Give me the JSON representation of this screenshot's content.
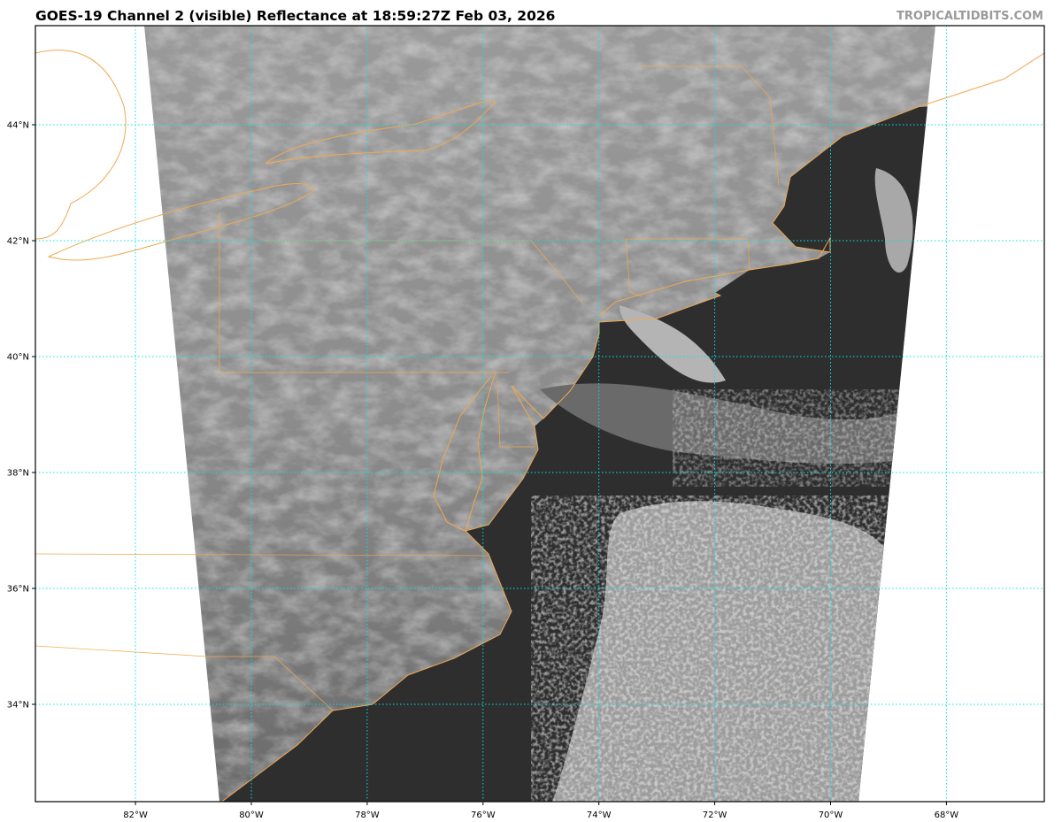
{
  "header": {
    "title": "GOES-19 Channel 2 (visible) Reflectance at 18:59:27Z Feb 03, 2026",
    "watermark": "TROPICALTIDBITS.COM"
  },
  "map": {
    "longitude_labels": [
      "82°W",
      "80°W",
      "78°W",
      "76°W",
      "74°W",
      "72°W",
      "70°W",
      "68°W"
    ],
    "longitudes": [
      -82,
      -80,
      -78,
      -76,
      -74,
      -72,
      -70,
      -68
    ],
    "latitude_labels": [
      "44°N",
      "42°N",
      "40°N",
      "38°N",
      "36°N",
      "34°N"
    ],
    "latitudes": [
      44,
      42,
      40,
      38,
      36,
      34
    ],
    "colors": {
      "gridline": "#00e5e5",
      "coastline": "#f0a850",
      "ocean": "#2e2e2e",
      "land_imagery": "#8e8e8e",
      "cloud": "#b8b8b8"
    }
  }
}
